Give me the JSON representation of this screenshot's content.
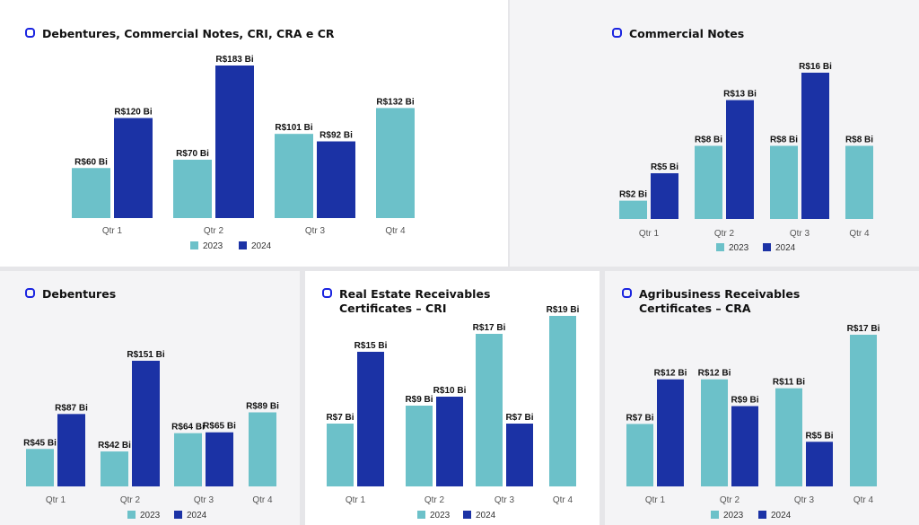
{
  "colors": {
    "series_2023": "#6cc1c9",
    "series_2024": "#1b32a5",
    "title_icon": "#1a24e0"
  },
  "charts": [
    {
      "title": "Debentures, Commercial Notes, CRI, CRA e CR",
      "chart_data": {
        "type": "bar",
        "title": "Debentures, Commercial Notes, CRI, CRA e CR",
        "categories": [
          "Qtr 1",
          "Qtr 2",
          "Qtr 3",
          "Qtr 4"
        ],
        "legend": "bottom",
        "series": [
          {
            "name": "2023",
            "values": [
              60,
              70,
              101,
              132
            ],
            "labels": [
              "R$60 Bi",
              "R$70 Bi",
              "R$101 Bi",
              "R$132 Bi"
            ]
          },
          {
            "name": "2024",
            "values": [
              120,
              183,
              92,
              null
            ],
            "labels": [
              "R$120 Bi",
              "R$183 Bi",
              "R$92 Bi",
              null
            ]
          }
        ]
      }
    },
    {
      "title": "Commercial Notes",
      "chart_data": {
        "type": "bar",
        "title": "Commercial Notes",
        "categories": [
          "Qtr 1",
          "Qtr 2",
          "Qtr 3",
          "Qtr 4"
        ],
        "legend": "bottom",
        "series": [
          {
            "name": "2023",
            "values": [
              2,
              8,
              8,
              8
            ],
            "labels": [
              "R$2 Bi",
              "R$8 Bi",
              "R$8 Bi",
              "R$8 Bi"
            ]
          },
          {
            "name": "2024",
            "values": [
              5,
              13,
              16,
              null
            ],
            "labels": [
              "R$5 Bi",
              "R$13 Bi",
              "R$16 Bi",
              null
            ]
          }
        ]
      }
    },
    {
      "title": "Debentures",
      "chart_data": {
        "type": "bar",
        "title": "Debentures",
        "categories": [
          "Qtr 1",
          "Qtr 2",
          "Qtr 3",
          "Qtr 4"
        ],
        "legend": "bottom",
        "series": [
          {
            "name": "2023",
            "values": [
              45,
              42,
              64,
              89
            ],
            "labels": [
              "R$45 Bi",
              "R$42 Bi",
              "R$64 Bi",
              "R$89 Bi"
            ]
          },
          {
            "name": "2024",
            "values": [
              87,
              151,
              65,
              null
            ],
            "labels": [
              "R$87 Bi",
              "R$151 Bi",
              "R$65 Bi",
              null
            ]
          }
        ]
      }
    },
    {
      "title": "Real Estate Receivables\nCertificates – CRI",
      "chart_data": {
        "type": "bar",
        "title": "Real Estate Receivables Certificates – CRI",
        "categories": [
          "Qtr 1",
          "Qtr 2",
          "Qtr 3",
          "Qtr 4"
        ],
        "legend": "bottom",
        "series": [
          {
            "name": "2023",
            "values": [
              7,
              9,
              17,
              19
            ],
            "labels": [
              "R$7 Bi",
              "R$9 Bi",
              "R$17 Bi",
              "R$19 Bi"
            ]
          },
          {
            "name": "2024",
            "values": [
              15,
              10,
              7,
              null
            ],
            "labels": [
              "R$15 Bi",
              "R$10 Bi",
              "R$7 Bi",
              null
            ]
          }
        ]
      }
    },
    {
      "title": "Agribusiness Receivables\nCertificates – CRA",
      "chart_data": {
        "type": "bar",
        "title": "Agribusiness Receivables Certificates – CRA",
        "categories": [
          "Qtr 1",
          "Qtr 2",
          "Qtr 3",
          "Qtr 4"
        ],
        "legend": "bottom",
        "series": [
          {
            "name": "2023",
            "values": [
              7,
              12,
              11,
              17
            ],
            "labels": [
              "R$7 Bi",
              "R$12 Bi",
              "R$11 Bi",
              "R$17 Bi"
            ]
          },
          {
            "name": "2024",
            "values": [
              12,
              9,
              5,
              null
            ],
            "labels": [
              "R$12 Bi",
              "R$9 Bi",
              "R$5 Bi",
              null
            ]
          }
        ]
      }
    }
  ]
}
